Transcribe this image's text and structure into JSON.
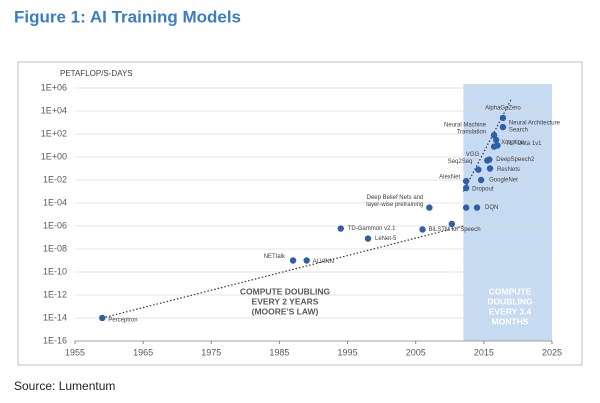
{
  "chart_data": {
    "type": "scatter",
    "title": "Figure 1: AI Training Models",
    "y_label": "PETAFLOP/S-DAYS",
    "source": "Source: Lumentum",
    "log_y": true,
    "grid": true,
    "color": "#2f5fa7",
    "shade_color": "#c6daf2",
    "shade_x": [
      2012,
      2025
    ],
    "xlim": [
      1955,
      2025
    ],
    "xticks": [
      1955,
      1965,
      1975,
      1985,
      1995,
      2005,
      2015,
      2025
    ],
    "ylim": [
      1e-16,
      1000000.0
    ],
    "yticks": [
      {
        "value": 1e-16,
        "label": "1E-16"
      },
      {
        "value": 1e-14,
        "label": "1E-14"
      },
      {
        "value": 1e-12,
        "label": "1E-12"
      },
      {
        "value": 1e-10,
        "label": "1E-10"
      },
      {
        "value": 1e-08,
        "label": "1E-08"
      },
      {
        "value": 1e-06,
        "label": "1E-06"
      },
      {
        "value": 0.0001,
        "label": "1E-04"
      },
      {
        "value": 0.01,
        "label": "1E-02"
      },
      {
        "value": 1,
        "label": "1E+00"
      },
      {
        "value": 100,
        "label": "1E+02"
      },
      {
        "value": 10000,
        "label": "1E+04"
      },
      {
        "value": 1000000,
        "label": "1E+06"
      }
    ],
    "x": [
      1959,
      1987,
      1989,
      1994,
      1998,
      2006,
      2010.3,
      2007,
      2012.4,
      2014,
      2012.4,
      2012.4,
      2014.6,
      2014.2,
      2015.5,
      2015.8,
      2015.9,
      2016.5,
      2017,
      2016.5,
      2016.8,
      2017.8,
      2017.8
    ],
    "values": [
      1e-14,
      1e-09,
      1e-09,
      6e-07,
      8e-08,
      5e-07,
      1.5e-06,
      4e-05,
      4e-05,
      4e-05,
      0.002,
      0.008,
      0.01,
      0.08,
      0.5,
      0.6,
      0.1,
      8,
      10,
      80,
      30,
      400,
      2500
    ],
    "labels": [
      [
        "Perceptron"
      ],
      [
        "NETtalk"
      ],
      [
        "ALVINN"
      ],
      [
        "TD-Gammon v2.1"
      ],
      [
        "LeNet-5"
      ],
      [
        "BiLSTM for Speech"
      ],
      null,
      [
        "Deep Belief Nets and",
        "layer-wise pretraining"
      ],
      null,
      [
        "DQN"
      ],
      [
        "Dropout"
      ],
      [
        "AlexNet"
      ],
      [
        "GoogleNet"
      ],
      [
        "Seq2Seq"
      ],
      [
        "VGG"
      ],
      [
        "DeepSpeech2"
      ],
      [
        "ResNets"
      ],
      [
        "Xception"
      ],
      [
        "T17 Dota 1v1"
      ],
      [
        "Neural Machine",
        "Translation"
      ],
      null,
      [
        "Neural Architecture",
        "Search"
      ],
      [
        "AlphaGoZero"
      ]
    ],
    "trends": [
      {
        "x": [
          1959,
          2012
        ],
        "values": [
          1e-14,
          1e-06
        ]
      },
      {
        "x": [
          2012,
          2019
        ],
        "values": [
          0.001,
          100000
        ]
      }
    ],
    "annotations": [
      [
        "COMPUTE DOUBLING",
        "EVERY 2 YEARS",
        "(MOORE'S LAW)"
      ],
      [
        "COMPUTE",
        "DOUBLING",
        "EVERY 3.4",
        "MONTHS"
      ]
    ]
  }
}
